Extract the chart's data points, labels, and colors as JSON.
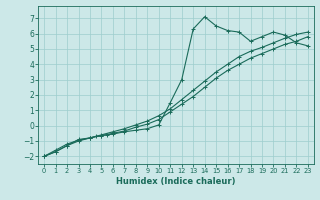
{
  "xlabel": "Humidex (Indice chaleur)",
  "bg_color": "#cce8e8",
  "line_color": "#1a6b5a",
  "grid_color": "#9ecece",
  "xlim": [
    -0.5,
    23.5
  ],
  "ylim": [
    -2.5,
    7.8
  ],
  "xticks": [
    0,
    1,
    2,
    3,
    4,
    5,
    6,
    7,
    8,
    9,
    10,
    11,
    12,
    13,
    14,
    15,
    16,
    17,
    18,
    19,
    20,
    21,
    22,
    23
  ],
  "yticks": [
    -2,
    -1,
    0,
    1,
    2,
    3,
    4,
    5,
    6,
    7
  ],
  "series": [
    {
      "x": [
        0,
        1,
        2,
        3,
        4,
        4.5,
        5,
        5.5,
        6,
        7,
        8,
        9,
        10,
        11,
        12,
        13,
        14,
        15,
        16,
        17,
        18,
        19,
        20,
        21,
        22,
        23
      ],
      "y": [
        -2.0,
        -1.7,
        -1.3,
        -0.9,
        -0.8,
        -0.7,
        -0.65,
        -0.6,
        -0.55,
        -0.4,
        -0.3,
        -0.2,
        0.05,
        1.5,
        3.0,
        6.3,
        7.1,
        6.5,
        6.2,
        6.1,
        5.5,
        5.8,
        6.1,
        5.9,
        5.4,
        5.2
      ]
    },
    {
      "x": [
        0,
        1,
        2,
        3,
        4,
        5,
        6,
        7,
        8,
        9,
        10,
        11,
        12,
        13,
        14,
        15,
        16,
        17,
        18,
        19,
        20,
        21,
        22,
        23
      ],
      "y": [
        -2.0,
        -1.7,
        -1.3,
        -1.0,
        -0.8,
        -0.65,
        -0.5,
        -0.35,
        -0.1,
        0.1,
        0.4,
        0.9,
        1.4,
        1.9,
        2.5,
        3.1,
        3.6,
        4.0,
        4.4,
        4.7,
        5.0,
        5.3,
        5.5,
        5.8
      ]
    },
    {
      "x": [
        0,
        1,
        2,
        3,
        4,
        5,
        6,
        7,
        8,
        9,
        10,
        11,
        12,
        13,
        14,
        15,
        16,
        17,
        18,
        19,
        20,
        21,
        22,
        23
      ],
      "y": [
        -2.0,
        -1.6,
        -1.2,
        -0.95,
        -0.8,
        -0.6,
        -0.4,
        -0.2,
        0.05,
        0.3,
        0.65,
        1.1,
        1.7,
        2.3,
        2.9,
        3.5,
        4.0,
        4.5,
        4.85,
        5.1,
        5.4,
        5.7,
        5.95,
        6.1
      ]
    }
  ],
  "xlabel_fontsize": 6.0,
  "tick_fontsize_x": 4.8,
  "tick_fontsize_y": 5.5
}
